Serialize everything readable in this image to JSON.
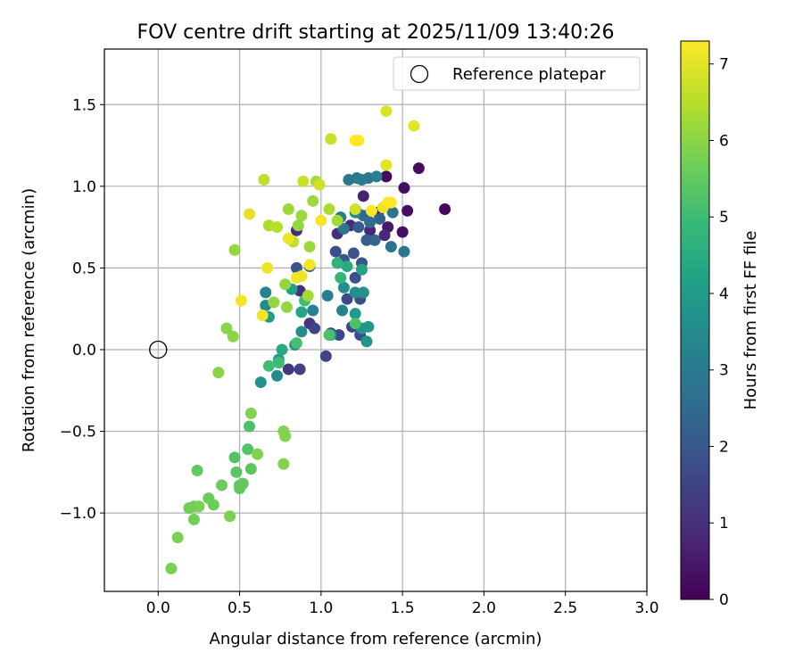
{
  "chart_data": {
    "type": "scatter",
    "title": "FOV centre drift starting at 2025/11/09 13:40:26",
    "xlabel": "Angular distance from reference (arcmin)",
    "ylabel": "Rotation from reference (arcmin)",
    "xlim": [
      -0.33,
      3.0
    ],
    "ylim": [
      -1.48,
      1.84
    ],
    "xticks": [
      0.0,
      0.5,
      1.0,
      1.5,
      2.0,
      2.5,
      3.0
    ],
    "xtick_labels": [
      "0.0",
      "0.5",
      "1.0",
      "1.5",
      "2.0",
      "2.5",
      "3.0"
    ],
    "yticks": [
      -1.0,
      -0.5,
      0.0,
      0.5,
      1.0,
      1.5
    ],
    "ytick_labels": [
      "−1.0",
      "−0.5",
      "0.0",
      "0.5",
      "1.0",
      "1.5"
    ],
    "grid": true,
    "legend": {
      "position": "upper-right",
      "entries": [
        "Reference platepar"
      ]
    },
    "reference_point": {
      "x": 0.0,
      "y": 0.0
    },
    "colorbar": {
      "label": "Hours from first FF file",
      "range": [
        0,
        7.3
      ],
      "ticks": [
        0,
        1,
        2,
        3,
        4,
        5,
        6,
        7
      ],
      "tick_labels": [
        "0",
        "1",
        "2",
        "3",
        "4",
        "5",
        "6",
        "7"
      ],
      "colormap": [
        "#440154",
        "#482878",
        "#3e4989",
        "#31688e",
        "#26828e",
        "#1f9e89",
        "#35b779",
        "#6ece58",
        "#b5de2b",
        "#fde725"
      ]
    },
    "points": [
      {
        "x": 1.76,
        "y": 0.86,
        "t": 0.1
      },
      {
        "x": 1.6,
        "y": 1.11,
        "t": 0.2
      },
      {
        "x": 1.4,
        "y": 1.06,
        "t": 0.2
      },
      {
        "x": 1.51,
        "y": 0.99,
        "t": 0.3
      },
      {
        "x": 1.53,
        "y": 0.85,
        "t": 0.3
      },
      {
        "x": 1.5,
        "y": 0.72,
        "t": 0.3
      },
      {
        "x": 1.41,
        "y": 0.75,
        "t": 0.5
      },
      {
        "x": 1.35,
        "y": 0.84,
        "t": 0.5
      },
      {
        "x": 1.26,
        "y": 0.94,
        "t": 0.7
      },
      {
        "x": 1.22,
        "y": 0.84,
        "t": 0.7
      },
      {
        "x": 1.3,
        "y": 0.73,
        "t": 0.8
      },
      {
        "x": 1.39,
        "y": 0.7,
        "t": 0.8
      },
      {
        "x": 1.18,
        "y": 0.76,
        "t": 0.9
      },
      {
        "x": 1.1,
        "y": 0.71,
        "t": 1.0
      },
      {
        "x": 0.85,
        "y": 0.73,
        "t": 0.9
      },
      {
        "x": 0.87,
        "y": 0.36,
        "t": 1.0
      },
      {
        "x": 0.93,
        "y": 0.16,
        "t": 1.2
      },
      {
        "x": 0.8,
        "y": -0.12,
        "t": 1.2
      },
      {
        "x": 0.87,
        "y": -0.12,
        "t": 1.4
      },
      {
        "x": 1.03,
        "y": -0.04,
        "t": 1.5
      },
      {
        "x": 0.96,
        "y": 0.13,
        "t": 1.5
      },
      {
        "x": 1.06,
        "y": 0.1,
        "t": 1.6
      },
      {
        "x": 1.11,
        "y": 0.09,
        "t": 1.6
      },
      {
        "x": 1.19,
        "y": 0.14,
        "t": 1.5
      },
      {
        "x": 1.24,
        "y": 0.09,
        "t": 1.7
      },
      {
        "x": 1.16,
        "y": 0.31,
        "t": 1.6
      },
      {
        "x": 1.24,
        "y": 0.31,
        "t": 1.8
      },
      {
        "x": 1.21,
        "y": 0.44,
        "t": 1.8
      },
      {
        "x": 1.25,
        "y": 0.53,
        "t": 1.9
      },
      {
        "x": 1.09,
        "y": 0.6,
        "t": 1.8
      },
      {
        "x": 0.85,
        "y": 0.5,
        "t": 1.9
      },
      {
        "x": 0.93,
        "y": 0.51,
        "t": 2.0
      },
      {
        "x": 1.14,
        "y": 0.55,
        "t": 2.0
      },
      {
        "x": 1.2,
        "y": 0.59,
        "t": 1.9
      },
      {
        "x": 1.23,
        "y": 0.75,
        "t": 2.1
      },
      {
        "x": 1.28,
        "y": 0.67,
        "t": 2.2
      },
      {
        "x": 1.33,
        "y": 0.67,
        "t": 2.4
      },
      {
        "x": 1.36,
        "y": 0.8,
        "t": 2.3
      },
      {
        "x": 1.26,
        "y": 0.82,
        "t": 2.5
      },
      {
        "x": 1.3,
        "y": 0.78,
        "t": 2.6
      },
      {
        "x": 1.44,
        "y": 0.84,
        "t": 2.8
      },
      {
        "x": 1.43,
        "y": 0.63,
        "t": 2.8
      },
      {
        "x": 1.51,
        "y": 0.6,
        "t": 2.9
      },
      {
        "x": 1.12,
        "y": 0.81,
        "t": 3.0
      },
      {
        "x": 1.14,
        "y": 0.74,
        "t": 2.9
      },
      {
        "x": 1.29,
        "y": 1.05,
        "t": 2.9
      },
      {
        "x": 1.17,
        "y": 1.04,
        "t": 3.0
      },
      {
        "x": 1.22,
        "y": 1.05,
        "t": 3.0
      },
      {
        "x": 1.25,
        "y": 1.04,
        "t": 3.1
      },
      {
        "x": 1.34,
        "y": 1.06,
        "t": 3.2
      },
      {
        "x": 1.21,
        "y": 0.84,
        "t": 3.3
      },
      {
        "x": 1.13,
        "y": 0.24,
        "t": 3.2
      },
      {
        "x": 1.04,
        "y": 0.33,
        "t": 3.1
      },
      {
        "x": 0.95,
        "y": 0.24,
        "t": 3.2
      },
      {
        "x": 0.66,
        "y": 0.35,
        "t": 3.3
      },
      {
        "x": 0.73,
        "y": -0.16,
        "t": 3.5
      },
      {
        "x": 0.66,
        "y": 0.27,
        "t": 3.5
      },
      {
        "x": 0.63,
        "y": -0.2,
        "t": 3.7
      },
      {
        "x": 0.84,
        "y": 0.03,
        "t": 3.6
      },
      {
        "x": 0.88,
        "y": 0.11,
        "t": 3.6
      },
      {
        "x": 1.06,
        "y": 0.09,
        "t": 3.7
      },
      {
        "x": 1.14,
        "y": 0.38,
        "t": 3.6
      },
      {
        "x": 1.21,
        "y": 0.35,
        "t": 3.6
      },
      {
        "x": 1.26,
        "y": 0.35,
        "t": 3.7
      },
      {
        "x": 1.25,
        "y": 0.13,
        "t": 3.8
      },
      {
        "x": 1.28,
        "y": 0.05,
        "t": 3.8
      },
      {
        "x": 1.29,
        "y": 0.14,
        "t": 3.9
      },
      {
        "x": 0.68,
        "y": 0.2,
        "t": 4.0
      },
      {
        "x": 0.74,
        "y": -0.06,
        "t": 4.1
      },
      {
        "x": 0.76,
        "y": 0.0,
        "t": 4.4
      },
      {
        "x": 0.82,
        "y": 0.37,
        "t": 4.2
      },
      {
        "x": 0.88,
        "y": 0.23,
        "t": 4.3
      },
      {
        "x": 1.21,
        "y": 0.22,
        "t": 4.0
      },
      {
        "x": 1.16,
        "y": 0.51,
        "t": 4.4
      },
      {
        "x": 1.25,
        "y": 0.49,
        "t": 4.2
      },
      {
        "x": 1.1,
        "y": 0.53,
        "t": 4.7
      },
      {
        "x": 1.12,
        "y": 0.44,
        "t": 4.8
      },
      {
        "x": 0.68,
        "y": -0.1,
        "t": 5.0
      },
      {
        "x": 0.74,
        "y": -0.08,
        "t": 5.0
      },
      {
        "x": 0.85,
        "y": 0.04,
        "t": 5.1
      },
      {
        "x": 0.9,
        "y": 0.3,
        "t": 5.0
      },
      {
        "x": 1.05,
        "y": 0.09,
        "t": 5.2
      },
      {
        "x": 1.21,
        "y": 0.16,
        "t": 5.2
      },
      {
        "x": 0.56,
        "y": -0.47,
        "t": 5.2
      },
      {
        "x": 0.55,
        "y": -0.61,
        "t": 5.3
      },
      {
        "x": 0.47,
        "y": -0.66,
        "t": 5.3
      },
      {
        "x": 0.57,
        "y": -0.73,
        "t": 5.4
      },
      {
        "x": 0.48,
        "y": -0.75,
        "t": 5.4
      },
      {
        "x": 0.5,
        "y": -0.83,
        "t": 5.4
      },
      {
        "x": 0.52,
        "y": -0.82,
        "t": 5.5
      },
      {
        "x": 0.5,
        "y": -0.85,
        "t": 5.5
      },
      {
        "x": 0.39,
        "y": -0.83,
        "t": 5.6
      },
      {
        "x": 0.24,
        "y": -0.74,
        "t": 5.5
      },
      {
        "x": 0.31,
        "y": -0.91,
        "t": 5.6
      },
      {
        "x": 0.34,
        "y": -0.95,
        "t": 5.6
      },
      {
        "x": 0.19,
        "y": -0.97,
        "t": 5.7
      },
      {
        "x": 0.22,
        "y": -0.96,
        "t": 5.7
      },
      {
        "x": 0.25,
        "y": -0.96,
        "t": 5.8
      },
      {
        "x": 0.22,
        "y": -1.04,
        "t": 5.7
      },
      {
        "x": 0.44,
        "y": -1.02,
        "t": 5.8
      },
      {
        "x": 0.12,
        "y": -1.15,
        "t": 5.8
      },
      {
        "x": 0.08,
        "y": -1.34,
        "t": 5.8
      },
      {
        "x": 0.77,
        "y": -0.5,
        "t": 5.9
      },
      {
        "x": 0.78,
        "y": -0.53,
        "t": 5.9
      },
      {
        "x": 0.77,
        "y": -0.7,
        "t": 5.9
      },
      {
        "x": 0.57,
        "y": -0.39,
        "t": 5.9
      },
      {
        "x": 0.61,
        "y": -0.64,
        "t": 5.9
      },
      {
        "x": 0.37,
        "y": -0.14,
        "t": 6.0
      },
      {
        "x": 0.42,
        "y": 0.13,
        "t": 6.0
      },
      {
        "x": 0.46,
        "y": 0.08,
        "t": 6.0
      },
      {
        "x": 0.47,
        "y": 0.61,
        "t": 6.1
      },
      {
        "x": 0.71,
        "y": 0.29,
        "t": 6.1
      },
      {
        "x": 0.79,
        "y": 0.26,
        "t": 6.1
      },
      {
        "x": 0.78,
        "y": 0.4,
        "t": 6.1
      },
      {
        "x": 0.8,
        "y": 0.86,
        "t": 6.2
      },
      {
        "x": 0.88,
        "y": 0.82,
        "t": 6.2
      },
      {
        "x": 0.86,
        "y": 0.76,
        "t": 6.1
      },
      {
        "x": 0.93,
        "y": 0.63,
        "t": 6.2
      },
      {
        "x": 0.95,
        "y": 0.91,
        "t": 6.2
      },
      {
        "x": 0.97,
        "y": 1.03,
        "t": 6.3
      },
      {
        "x": 0.92,
        "y": 0.33,
        "t": 6.3
      },
      {
        "x": 1.05,
        "y": 0.86,
        "t": 6.4
      },
      {
        "x": 1.1,
        "y": 0.79,
        "t": 6.3
      },
      {
        "x": 0.68,
        "y": 0.76,
        "t": 6.4
      },
      {
        "x": 0.73,
        "y": 0.75,
        "t": 6.5
      },
      {
        "x": 0.83,
        "y": 0.66,
        "t": 6.6
      },
      {
        "x": 0.65,
        "y": 1.04,
        "t": 6.6
      },
      {
        "x": 0.89,
        "y": 1.03,
        "t": 6.7
      },
      {
        "x": 0.99,
        "y": 1.01,
        "t": 6.8
      },
      {
        "x": 1.06,
        "y": 1.29,
        "t": 6.7
      },
      {
        "x": 1.21,
        "y": 0.86,
        "t": 6.8
      },
      {
        "x": 1.4,
        "y": 1.46,
        "t": 6.9
      },
      {
        "x": 1.57,
        "y": 1.37,
        "t": 7.0
      },
      {
        "x": 1.4,
        "y": 1.13,
        "t": 7.0
      },
      {
        "x": 1.38,
        "y": 0.87,
        "t": 7.1
      },
      {
        "x": 0.56,
        "y": 0.83,
        "t": 7.0
      },
      {
        "x": 0.67,
        "y": 0.5,
        "t": 7.1
      },
      {
        "x": 0.51,
        "y": 0.3,
        "t": 7.2
      },
      {
        "x": 0.64,
        "y": 0.21,
        "t": 7.2
      },
      {
        "x": 0.8,
        "y": 0.68,
        "t": 7.1
      },
      {
        "x": 0.85,
        "y": 0.44,
        "t": 7.2
      },
      {
        "x": 0.93,
        "y": 0.52,
        "t": 7.2
      },
      {
        "x": 1.0,
        "y": 0.79,
        "t": 7.2
      },
      {
        "x": 1.21,
        "y": 1.28,
        "t": 7.3
      },
      {
        "x": 1.23,
        "y": 1.28,
        "t": 7.3
      },
      {
        "x": 1.31,
        "y": 0.85,
        "t": 7.3
      },
      {
        "x": 1.41,
        "y": 0.9,
        "t": 7.3
      },
      {
        "x": 1.43,
        "y": 0.9,
        "t": 7.3
      },
      {
        "x": 0.88,
        "y": 0.45,
        "t": 7.1
      }
    ]
  }
}
